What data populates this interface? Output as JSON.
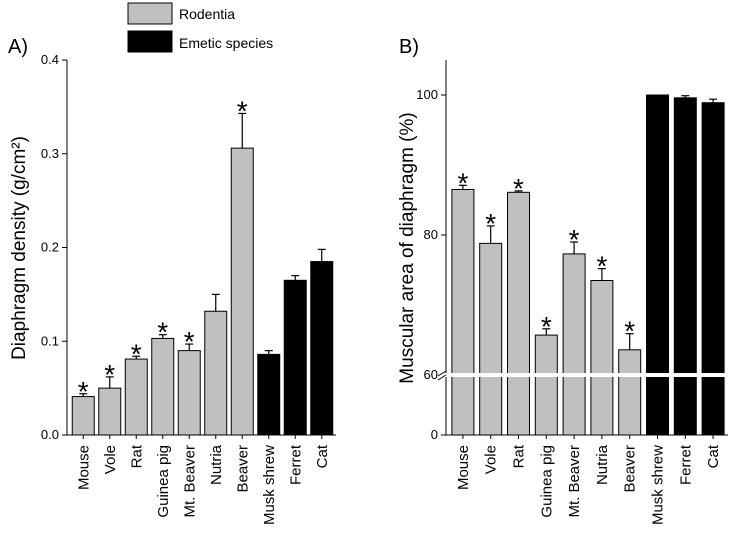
{
  "legend": {
    "rodentia": {
      "label": "Rodentia",
      "color": "#c0c0c0"
    },
    "emetic": {
      "label": "Emetic species",
      "color": "#000000"
    }
  },
  "chart_data": [
    {
      "type": "bar",
      "panel_label": "A)",
      "ylabel": "Diaphragm density (g/cm²)",
      "ylim": [
        0,
        0.4
      ],
      "yticks": [
        {
          "value": 0,
          "label": "0.0"
        },
        {
          "value": 0.1,
          "label": "0.1"
        },
        {
          "value": 0.2,
          "label": "0.2"
        },
        {
          "value": 0.3,
          "label": "0.3"
        },
        {
          "value": 0.4,
          "label": "0.4"
        }
      ],
      "categories": [
        "Mouse",
        "Vole",
        "Rat",
        "Guinea pig",
        "Mt. Beaver",
        "Nutria",
        "Beaver",
        "Musk shrew",
        "Ferret",
        "Cat"
      ],
      "groups": [
        "rodentia",
        "rodentia",
        "rodentia",
        "rodentia",
        "rodentia",
        "rodentia",
        "rodentia",
        "emetic",
        "emetic",
        "emetic"
      ],
      "values": [
        0.041,
        0.05,
        0.081,
        0.103,
        0.09,
        0.132,
        0.306,
        0.086,
        0.165,
        0.185
      ],
      "errors": [
        0.003,
        0.012,
        0.003,
        0.004,
        0.007,
        0.018,
        0.037,
        0.004,
        0.005,
        0.013
      ],
      "significant": [
        true,
        true,
        true,
        true,
        true,
        false,
        true,
        false,
        false,
        false
      ],
      "annotation": "*"
    },
    {
      "type": "bar",
      "panel_label": "B)",
      "ylabel": "Muscular area of diaphragm (%)",
      "ylim": [
        0,
        100
      ],
      "axis_break": 60,
      "yticks": [
        {
          "value": 0,
          "label": "0"
        },
        {
          "value": 60,
          "label": "60"
        },
        {
          "value": 80,
          "label": "80"
        },
        {
          "value": 100,
          "label": "100"
        }
      ],
      "categories": [
        "Mouse",
        "Vole",
        "Rat",
        "Guinea pig",
        "Mt. Beaver",
        "Nutria",
        "Beaver",
        "Musk shrew",
        "Ferret",
        "Cat"
      ],
      "groups": [
        "rodentia",
        "rodentia",
        "rodentia",
        "rodentia",
        "rodentia",
        "rodentia",
        "rodentia",
        "emetic",
        "emetic",
        "emetic"
      ],
      "values": [
        86.5,
        78.8,
        86.1,
        65.7,
        77.3,
        73.5,
        63.6,
        100,
        99.6,
        98.9
      ],
      "errors": [
        0.6,
        2.5,
        0.2,
        0.9,
        1.7,
        1.7,
        2.3,
        0,
        0.3,
        0.5
      ],
      "significant": [
        true,
        true,
        true,
        true,
        true,
        true,
        true,
        false,
        false,
        false
      ],
      "annotation": "*"
    }
  ]
}
